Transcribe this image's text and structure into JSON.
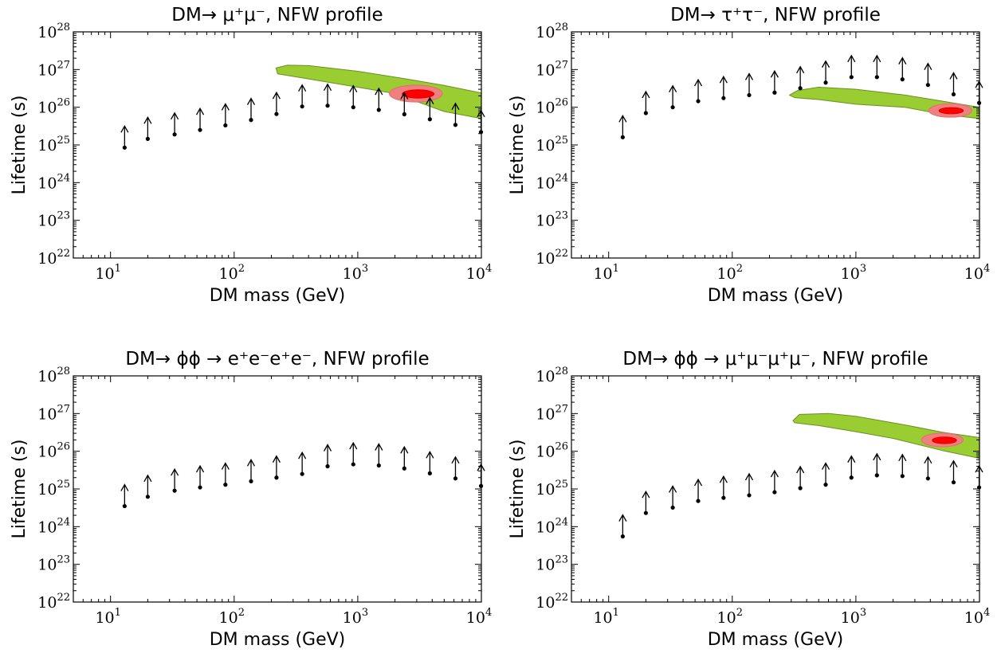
{
  "figure": {
    "rows": 2,
    "cols": 2
  },
  "chart_data": [
    {
      "type": "scatter",
      "title": "DM→ μ⁺μ⁻, NFW profile",
      "xlabel": "DM mass (GeV)",
      "ylabel": "Lifetime (s)",
      "xscale": "log",
      "yscale": "log",
      "xlim": [
        5,
        10000
      ],
      "ylim": [
        1e+22,
        1e+28
      ],
      "xticklabels": [
        {
          "base": "10",
          "exp": "1"
        },
        {
          "base": "10",
          "exp": "2"
        },
        {
          "base": "10",
          "exp": "3"
        },
        {
          "base": "10",
          "exp": "4"
        }
      ],
      "yticklabels": [
        {
          "base": "10",
          "exp": "22"
        },
        {
          "base": "10",
          "exp": "23"
        },
        {
          "base": "10",
          "exp": "24"
        },
        {
          "base": "10",
          "exp": "25"
        },
        {
          "base": "10",
          "exp": "26"
        },
        {
          "base": "10",
          "exp": "27"
        },
        {
          "base": "10",
          "exp": "28"
        }
      ],
      "marker": "lower-limit-arrow",
      "points": [
        {
          "x": 13,
          "y": 8.5e+24
        },
        {
          "x": 20,
          "y": 1.45e+25
        },
        {
          "x": 33,
          "y": 1.9e+25
        },
        {
          "x": 53,
          "y": 2.5e+25
        },
        {
          "x": 85,
          "y": 3.3e+25
        },
        {
          "x": 137,
          "y": 4.6e+25
        },
        {
          "x": 220,
          "y": 6.6e+25
        },
        {
          "x": 355,
          "y": 1.05e+26
        },
        {
          "x": 570,
          "y": 1.1e+26
        },
        {
          "x": 920,
          "y": 1e+26
        },
        {
          "x": 1480,
          "y": 8.5e+25
        },
        {
          "x": 2380,
          "y": 6.5e+25
        },
        {
          "x": 3830,
          "y": 4.8e+25
        },
        {
          "x": 6170,
          "y": 3.4e+25
        },
        {
          "x": 9930,
          "y": 2.2e+25
        }
      ],
      "regions": [
        {
          "name": "",
          "color": "#9acd32",
          "outline": "#6b8e23",
          "shape": "band",
          "path": [
            [
              218,
              1.1e+27
            ],
            [
              270,
              1.3e+27
            ],
            [
              400,
              1.27e+27
            ],
            [
              1000,
              9e+26
            ],
            [
              2500,
              5.6e+26
            ],
            [
              5000,
              3.8e+26
            ],
            [
              10000,
              2.4e+26
            ],
            [
              10000,
              1.7e+26
            ],
            [
              10000,
              5e+25
            ],
            [
              5000,
              7.7e+25
            ],
            [
              2000,
              2.3e+26
            ],
            [
              1000,
              3.4e+26
            ],
            [
              500,
              5e+26
            ],
            [
              225,
              7.7e+26
            ]
          ]
        },
        {
          "name": "",
          "color": "#f08080",
          "outline": "#e07070",
          "shape": "ellipse",
          "center": [
            2950,
            2.3e+26
          ],
          "span_x": [
            1780,
            4780
          ],
          "span_y": [
            1.35e+26,
            3.8e+26
          ]
        },
        {
          "name": "",
          "color": "#ff0000",
          "outline": "#e00000",
          "shape": "ellipse",
          "center": [
            3080,
            2.25e+26
          ],
          "span_x": [
            2300,
            4170
          ],
          "span_y": [
            1.75e+26,
            2.9e+26
          ]
        }
      ]
    },
    {
      "type": "scatter",
      "title": "DM→ τ⁺τ⁻, NFW profile",
      "xlabel": "DM mass (GeV)",
      "ylabel": "Lifetime (s)",
      "xscale": "log",
      "yscale": "log",
      "xlim": [
        5,
        10000
      ],
      "ylim": [
        1e+22,
        1e+28
      ],
      "xticklabels": [
        {
          "base": "10",
          "exp": "1"
        },
        {
          "base": "10",
          "exp": "2"
        },
        {
          "base": "10",
          "exp": "3"
        },
        {
          "base": "10",
          "exp": "4"
        }
      ],
      "yticklabels": [
        {
          "base": "10",
          "exp": "22"
        },
        {
          "base": "10",
          "exp": "23"
        },
        {
          "base": "10",
          "exp": "24"
        },
        {
          "base": "10",
          "exp": "25"
        },
        {
          "base": "10",
          "exp": "26"
        },
        {
          "base": "10",
          "exp": "27"
        },
        {
          "base": "10",
          "exp": "28"
        }
      ],
      "marker": "lower-limit-arrow",
      "points": [
        {
          "x": 13,
          "y": 1.6e+25
        },
        {
          "x": 20,
          "y": 7e+25
        },
        {
          "x": 33,
          "y": 1e+26
        },
        {
          "x": 53,
          "y": 1.45e+26
        },
        {
          "x": 85,
          "y": 1.75e+26
        },
        {
          "x": 137,
          "y": 2.1e+26
        },
        {
          "x": 220,
          "y": 2.45e+26
        },
        {
          "x": 355,
          "y": 3.2e+26
        },
        {
          "x": 570,
          "y": 4.5e+26
        },
        {
          "x": 920,
          "y": 6.3e+26
        },
        {
          "x": 1480,
          "y": 6.3e+26
        },
        {
          "x": 2380,
          "y": 5.5e+26
        },
        {
          "x": 3830,
          "y": 3.9e+26
        },
        {
          "x": 6170,
          "y": 2.2e+26
        },
        {
          "x": 9930,
          "y": 1.3e+26
        }
      ],
      "regions": [
        {
          "name": "",
          "color": "#9acd32",
          "outline": "#6b8e23",
          "shape": "band",
          "path": [
            [
              290,
              2.1e+26
            ],
            [
              340,
              2.8e+26
            ],
            [
              500,
              3.4e+26
            ],
            [
              1000,
              3e+26
            ],
            [
              2500,
              2.1e+26
            ],
            [
              5000,
              1.45e+26
            ],
            [
              10000,
              1e+26
            ],
            [
              10000,
              7e+25
            ],
            [
              10000,
              5e+25
            ],
            [
              5000,
              6.5e+25
            ],
            [
              2500,
              1e+26
            ],
            [
              1000,
              1.2e+26
            ],
            [
              500,
              1.6e+26
            ],
            [
              320,
              1.8e+26
            ]
          ]
        },
        {
          "name": "",
          "color": "#f08080",
          "outline": "#e07070",
          "shape": "ellipse",
          "center": [
            5800,
            8.2e+25
          ],
          "span_x": [
            3900,
            8700
          ],
          "span_y": [
            5.5e+25,
            1.25e+26
          ]
        },
        {
          "name": "",
          "color": "#ff0000",
          "outline": "#e00000",
          "shape": "ellipse",
          "center": [
            5900,
            8.1e+25
          ],
          "span_x": [
            4700,
            7400
          ],
          "span_y": [
            6.7e+25,
            9.8e+25
          ]
        }
      ]
    },
    {
      "type": "scatter",
      "title": "DM→ ϕϕ → e⁺e⁻e⁺e⁻, NFW profile",
      "xlabel": "DM mass (GeV)",
      "ylabel": "Lifetime (s)",
      "xscale": "log",
      "yscale": "log",
      "xlim": [
        5,
        10000
      ],
      "ylim": [
        1e+22,
        1e+28
      ],
      "xticklabels": [
        {
          "base": "10",
          "exp": "1"
        },
        {
          "base": "10",
          "exp": "2"
        },
        {
          "base": "10",
          "exp": "3"
        },
        {
          "base": "10",
          "exp": "4"
        }
      ],
      "yticklabels": [
        {
          "base": "10",
          "exp": "22"
        },
        {
          "base": "10",
          "exp": "23"
        },
        {
          "base": "10",
          "exp": "24"
        },
        {
          "base": "10",
          "exp": "25"
        },
        {
          "base": "10",
          "exp": "26"
        },
        {
          "base": "10",
          "exp": "27"
        },
        {
          "base": "10",
          "exp": "28"
        }
      ],
      "marker": "lower-limit-arrow",
      "points": [
        {
          "x": 13,
          "y": 3.5e+24
        },
        {
          "x": 20,
          "y": 6.2e+24
        },
        {
          "x": 33,
          "y": 9e+24
        },
        {
          "x": 53,
          "y": 1.1e+25
        },
        {
          "x": 85,
          "y": 1.3e+25
        },
        {
          "x": 137,
          "y": 1.6e+25
        },
        {
          "x": 220,
          "y": 2e+25
        },
        {
          "x": 355,
          "y": 2.5e+25
        },
        {
          "x": 570,
          "y": 4e+25
        },
        {
          "x": 920,
          "y": 4.5e+25
        },
        {
          "x": 1480,
          "y": 4.2e+25
        },
        {
          "x": 2380,
          "y": 3.5e+25
        },
        {
          "x": 3830,
          "y": 2.6e+25
        },
        {
          "x": 6170,
          "y": 1.9e+25
        },
        {
          "x": 9930,
          "y": 1.2e+25
        }
      ],
      "regions": []
    },
    {
      "type": "scatter",
      "title": "DM→ ϕϕ → μ⁺μ⁻μ⁺μ⁻, NFW profile",
      "xlabel": "DM mass (GeV)",
      "ylabel": "Lifetime (s)",
      "xscale": "log",
      "yscale": "log",
      "xlim": [
        5,
        10000
      ],
      "ylim": [
        1e+22,
        1e+28
      ],
      "xticklabels": [
        {
          "base": "10",
          "exp": "1"
        },
        {
          "base": "10",
          "exp": "2"
        },
        {
          "base": "10",
          "exp": "3"
        },
        {
          "base": "10",
          "exp": "4"
        }
      ],
      "yticklabels": [
        {
          "base": "10",
          "exp": "22"
        },
        {
          "base": "10",
          "exp": "23"
        },
        {
          "base": "10",
          "exp": "24"
        },
        {
          "base": "10",
          "exp": "25"
        },
        {
          "base": "10",
          "exp": "26"
        },
        {
          "base": "10",
          "exp": "27"
        },
        {
          "base": "10",
          "exp": "28"
        }
      ],
      "marker": "lower-limit-arrow",
      "points": [
        {
          "x": 13,
          "y": 5.5e+23
        },
        {
          "x": 20,
          "y": 2.3e+24
        },
        {
          "x": 33,
          "y": 3.2e+24
        },
        {
          "x": 53,
          "y": 4.8e+24
        },
        {
          "x": 85,
          "y": 5.8e+24
        },
        {
          "x": 137,
          "y": 6.8e+24
        },
        {
          "x": 220,
          "y": 8.2e+24
        },
        {
          "x": 355,
          "y": 1.05e+25
        },
        {
          "x": 570,
          "y": 1.3e+25
        },
        {
          "x": 920,
          "y": 2e+25
        },
        {
          "x": 1480,
          "y": 2.3e+25
        },
        {
          "x": 2380,
          "y": 2.2e+25
        },
        {
          "x": 3830,
          "y": 1.9e+25
        },
        {
          "x": 6170,
          "y": 1.5e+25
        },
        {
          "x": 9930,
          "y": 1.1e+25
        }
      ],
      "regions": [
        {
          "name": "",
          "color": "#9acd32",
          "outline": "#6b8e23",
          "shape": "band",
          "path": [
            [
              310,
              6.5e+26
            ],
            [
              350,
              9.5e+26
            ],
            [
              600,
              1e+27
            ],
            [
              1000,
              8.5e+26
            ],
            [
              2500,
              5e+26
            ],
            [
              5000,
              3.2e+26
            ],
            [
              10000,
              2.3e+26
            ],
            [
              10000,
              1.7e+26
            ],
            [
              10000,
              6.5e+25
            ],
            [
              5000,
              1.05e+26
            ],
            [
              2000,
              2.2e+26
            ],
            [
              1000,
              3.3e+26
            ],
            [
              500,
              4.8e+26
            ],
            [
              320,
              5.7e+26
            ]
          ]
        },
        {
          "name": "",
          "color": "#f08080",
          "outline": "#e07070",
          "shape": "ellipse",
          "center": [
            5000,
            2e+26
          ],
          "span_x": [
            3400,
            7400
          ],
          "span_y": [
            1.3e+26,
            3e+26
          ]
        },
        {
          "name": "",
          "color": "#ff0000",
          "outline": "#e00000",
          "shape": "ellipse",
          "center": [
            5200,
            1.95e+26
          ],
          "span_x": [
            4200,
            6600
          ],
          "span_y": [
            1.6e+26,
            2.4e+26
          ]
        }
      ]
    }
  ]
}
